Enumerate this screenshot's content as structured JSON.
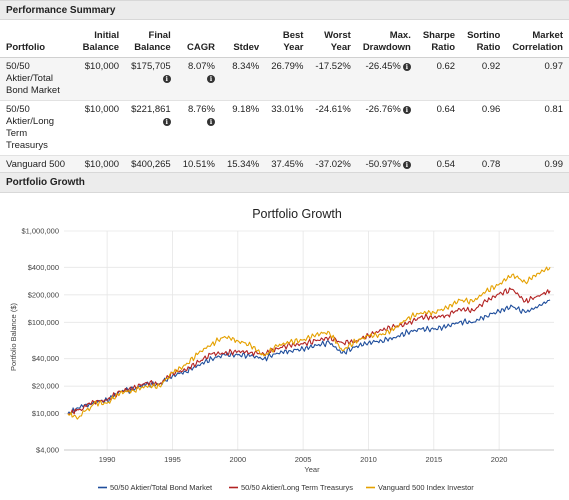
{
  "summary_panel": {
    "title": "Performance Summary"
  },
  "table": {
    "headers": [
      {
        "key": "portfolio",
        "label": [
          "Portfolio"
        ]
      },
      {
        "key": "initial",
        "label": [
          "Initial",
          "Balance"
        ]
      },
      {
        "key": "final",
        "label": [
          "Final",
          "Balance"
        ]
      },
      {
        "key": "cagr",
        "label": [
          "CAGR"
        ]
      },
      {
        "key": "stdev",
        "label": [
          "Stdev"
        ]
      },
      {
        "key": "best",
        "label": [
          "Best",
          "Year"
        ]
      },
      {
        "key": "worst",
        "label": [
          "Worst",
          "Year"
        ]
      },
      {
        "key": "maxdd",
        "label": [
          "Max.",
          "Drawdown"
        ]
      },
      {
        "key": "sharpe",
        "label": [
          "Sharpe",
          "Ratio"
        ]
      },
      {
        "key": "sortino",
        "label": [
          "Sortino",
          "Ratio"
        ]
      },
      {
        "key": "corr",
        "label": [
          "Market",
          "Correlation"
        ]
      }
    ],
    "rows": [
      {
        "portfolio": "50/50 Aktier/Total Bond Market",
        "initial": "$10,000",
        "final": "$175,705",
        "cagr": "8.07%",
        "stdev": "8.34%",
        "best": "26.79%",
        "worst": "-17.52%",
        "maxdd": "-26.45%",
        "sharpe": "0.62",
        "sortino": "0.92",
        "corr": "0.97"
      },
      {
        "portfolio": "50/50 Aktier/Long Term Treasurys",
        "initial": "$10,000",
        "final": "$221,861",
        "cagr": "8.76%",
        "stdev": "9.18%",
        "best": "33.01%",
        "worst": "-24.61%",
        "maxdd": "-26.76%",
        "sharpe": "0.64",
        "sortino": "0.96",
        "corr": "0.81"
      },
      {
        "portfolio": "Vanguard 500 Index Investor",
        "initial": "$10,000",
        "final": "$400,265",
        "cagr": "10.51%",
        "stdev": "15.34%",
        "best": "37.45%",
        "worst": "-37.02%",
        "maxdd": "-50.97%",
        "sharpe": "0.54",
        "sortino": "0.78",
        "corr": "0.99"
      }
    ],
    "info_icon": "info-circle-icon",
    "info_columns": [
      "final",
      "cagr",
      "maxdd"
    ]
  },
  "growth_panel": {
    "title": "Portfolio Growth"
  },
  "chart_data": {
    "type": "line",
    "title": "Portfolio Growth",
    "xlabel": "Year",
    "ylabel": "Portfolio Balance ($)",
    "yscale": "log",
    "ylim": [
      4000,
      1000000
    ],
    "xlim": [
      1986.7,
      2024.2
    ],
    "yticks": [
      4000,
      10000,
      20000,
      40000,
      100000,
      200000,
      400000,
      1000000
    ],
    "ytick_labels": [
      "$4,000",
      "$10,000",
      "$20,000",
      "$40,000",
      "$100,000",
      "$200,000",
      "$400,000",
      "$1,000,000"
    ],
    "xticks": [
      1990,
      1995,
      2000,
      2005,
      2010,
      2015,
      2020
    ],
    "grid": true,
    "legend_position": "bottom",
    "series": [
      {
        "name": "50/50 Aktier/Total Bond Market",
        "color": "#1f4e9c",
        "points": [
          [
            1987,
            10000
          ],
          [
            1987.8,
            11500
          ],
          [
            1989,
            13500
          ],
          [
            1990,
            14000
          ],
          [
            1991,
            17500
          ],
          [
            1992,
            18500
          ],
          [
            1993,
            21000
          ],
          [
            1994,
            21000
          ],
          [
            1995,
            26000
          ],
          [
            1996,
            29000
          ],
          [
            1997,
            34000
          ],
          [
            1998,
            40000
          ],
          [
            1999,
            44000
          ],
          [
            2000,
            44000
          ],
          [
            2001,
            43000
          ],
          [
            2002,
            40000
          ],
          [
            2003,
            46000
          ],
          [
            2004,
            49000
          ],
          [
            2005,
            51000
          ],
          [
            2006,
            56000
          ],
          [
            2007,
            60000
          ],
          [
            2008,
            46000
          ],
          [
            2009,
            54000
          ],
          [
            2010,
            60000
          ],
          [
            2011,
            63000
          ],
          [
            2012,
            68000
          ],
          [
            2013,
            78000
          ],
          [
            2014,
            84000
          ],
          [
            2015,
            84000
          ],
          [
            2016,
            90000
          ],
          [
            2017,
            102000
          ],
          [
            2018,
            100000
          ],
          [
            2019,
            118000
          ],
          [
            2020,
            132000
          ],
          [
            2021,
            150000
          ],
          [
            2022,
            128000
          ],
          [
            2023,
            150000
          ],
          [
            2023.9,
            175705
          ]
        ]
      },
      {
        "name": "50/50 Aktier/Long Term Treasurys",
        "color": "#b22222",
        "points": [
          [
            1987,
            10000
          ],
          [
            1987.8,
            11000
          ],
          [
            1989,
            13500
          ],
          [
            1990,
            14000
          ],
          [
            1991,
            17500
          ],
          [
            1992,
            19000
          ],
          [
            1993,
            22000
          ],
          [
            1994,
            21000
          ],
          [
            1995,
            28000
          ],
          [
            1996,
            30000
          ],
          [
            1997,
            37000
          ],
          [
            1998,
            45000
          ],
          [
            1999,
            46000
          ],
          [
            2000,
            48000
          ],
          [
            2001,
            47000
          ],
          [
            2002,
            45000
          ],
          [
            2003,
            52000
          ],
          [
            2004,
            56000
          ],
          [
            2005,
            58000
          ],
          [
            2006,
            63000
          ],
          [
            2007,
            68000
          ],
          [
            2008,
            60000
          ],
          [
            2009,
            62000
          ],
          [
            2010,
            72000
          ],
          [
            2011,
            82000
          ],
          [
            2012,
            90000
          ],
          [
            2013,
            96000
          ],
          [
            2014,
            115000
          ],
          [
            2015,
            113000
          ],
          [
            2016,
            120000
          ],
          [
            2017,
            140000
          ],
          [
            2018,
            135000
          ],
          [
            2019,
            170000
          ],
          [
            2020,
            205000
          ],
          [
            2021,
            230000
          ],
          [
            2022,
            170000
          ],
          [
            2023,
            195000
          ],
          [
            2023.9,
            221861
          ]
        ]
      },
      {
        "name": "Vanguard 500 Index Investor",
        "color": "#e5a100",
        "points": [
          [
            1987,
            10000
          ],
          [
            1987.8,
            9000
          ],
          [
            1989,
            13000
          ],
          [
            1990,
            13000
          ],
          [
            1991,
            17000
          ],
          [
            1992,
            18000
          ],
          [
            1993,
            20000
          ],
          [
            1994,
            20000
          ],
          [
            1995,
            28000
          ],
          [
            1996,
            34000
          ],
          [
            1997,
            46000
          ],
          [
            1998,
            58000
          ],
          [
            1999,
            70000
          ],
          [
            2000,
            63000
          ],
          [
            2001,
            56000
          ],
          [
            2002,
            43000
          ],
          [
            2003,
            55000
          ],
          [
            2004,
            61000
          ],
          [
            2005,
            64000
          ],
          [
            2006,
            74000
          ],
          [
            2007,
            78000
          ],
          [
            2008,
            49000
          ],
          [
            2009,
            62000
          ],
          [
            2010,
            71000
          ],
          [
            2011,
            73000
          ],
          [
            2012,
            85000
          ],
          [
            2013,
            112000
          ],
          [
            2014,
            127000
          ],
          [
            2015,
            129000
          ],
          [
            2016,
            144000
          ],
          [
            2017,
            176000
          ],
          [
            2018,
            168000
          ],
          [
            2019,
            220000
          ],
          [
            2020,
            260000
          ],
          [
            2021,
            335000
          ],
          [
            2022,
            275000
          ],
          [
            2023,
            345000
          ],
          [
            2023.9,
            400265
          ]
        ]
      }
    ]
  }
}
